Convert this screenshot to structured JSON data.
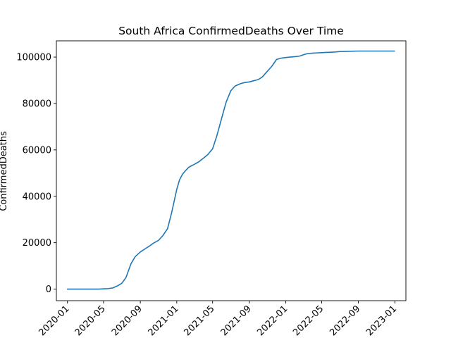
{
  "chart_data": {
    "type": "line",
    "title": "South Africa  ConfirmedDeaths Over Time",
    "xlabel": "",
    "ylabel": "ConfirmedDeaths",
    "xlim": [
      "2019-11-25",
      "2023-02-07"
    ],
    "ylim": [
      -4992,
      107000
    ],
    "grid": false,
    "line_color": "#1f77b4",
    "x_ticks": [
      "2020-01",
      "2020-05",
      "2020-09",
      "2021-01",
      "2021-05",
      "2021-09",
      "2022-01",
      "2022-05",
      "2022-09",
      "2023-01"
    ],
    "y_ticks": [
      0,
      20000,
      40000,
      60000,
      80000,
      100000
    ],
    "series": [
      {
        "x": [
          "2020-01-01",
          "2020-03-01",
          "2020-04-15",
          "2020-05-01",
          "2020-05-15",
          "2020-06-01",
          "2020-06-15",
          "2020-07-01",
          "2020-07-15",
          "2020-08-01",
          "2020-08-15",
          "2020-09-01",
          "2020-09-15",
          "2020-10-01",
          "2020-10-15",
          "2020-11-01",
          "2020-11-15",
          "2020-12-01",
          "2020-12-15",
          "2021-01-01",
          "2021-01-10",
          "2021-01-20",
          "2021-01-30",
          "2021-02-10",
          "2021-02-20",
          "2021-03-01",
          "2021-03-15",
          "2021-04-01",
          "2021-04-15",
          "2021-05-01",
          "2021-05-15",
          "2021-06-01",
          "2021-06-15",
          "2021-07-01",
          "2021-07-15",
          "2021-08-01",
          "2021-08-15",
          "2021-09-01",
          "2021-09-15",
          "2021-10-01",
          "2021-10-15",
          "2021-11-01",
          "2021-11-15",
          "2021-12-01",
          "2021-12-15",
          "2022-01-01",
          "2022-01-15",
          "2022-02-01",
          "2022-02-15",
          "2022-02-20",
          "2022-03-01",
          "2022-03-15",
          "2022-04-01",
          "2022-04-15",
          "2022-05-01",
          "2022-05-15",
          "2022-06-01",
          "2022-06-15",
          "2022-07-01",
          "2022-08-01",
          "2022-09-01",
          "2022-10-01",
          "2022-11-01",
          "2022-12-01",
          "2022-12-31"
        ],
        "y": [
          0,
          0,
          0,
          100,
          200,
          500,
          1300,
          2500,
          5000,
          11000,
          14000,
          16000,
          17200,
          18500,
          19800,
          21000,
          23000,
          26000,
          33000,
          43000,
          47000,
          49500,
          51000,
          52500,
          53200,
          53800,
          54800,
          56500,
          58000,
          60500,
          66000,
          74000,
          80500,
          85500,
          87500,
          88500,
          89000,
          89300,
          89800,
          90300,
          91500,
          94000,
          96000,
          99000,
          99500,
          99800,
          100000,
          100200,
          100400,
          100600,
          101000,
          101500,
          101700,
          101800,
          101900,
          102000,
          102100,
          102200,
          102400,
          102500,
          102600,
          102600,
          102600,
          102600,
          102600
        ]
      }
    ]
  }
}
